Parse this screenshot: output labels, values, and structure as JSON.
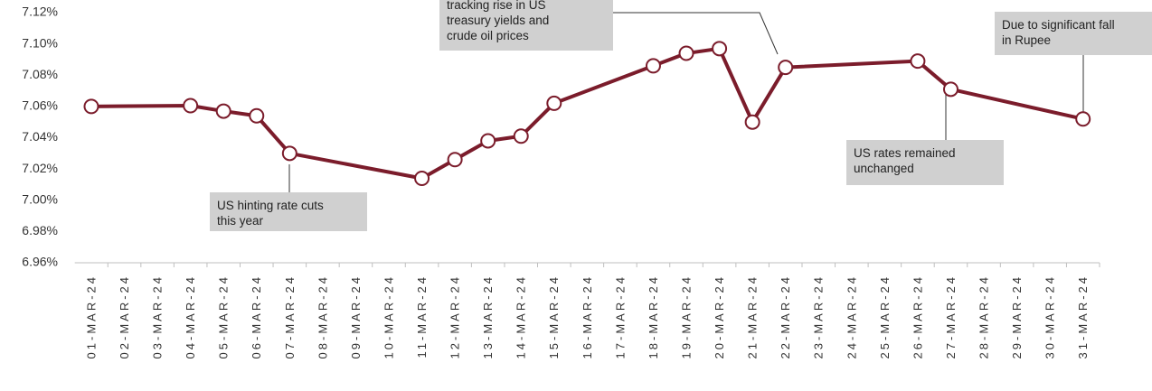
{
  "chart_data": {
    "type": "line",
    "categories": [
      "01-MAR-24",
      "02-MAR-24",
      "03-MAR-24",
      "04-MAR-24",
      "05-MAR-24",
      "06-MAR-24",
      "07-MAR-24",
      "08-MAR-24",
      "09-MAR-24",
      "10-MAR-24",
      "11-MAR-24",
      "12-MAR-24",
      "13-MAR-24",
      "14-MAR-24",
      "15-MAR-24",
      "16-MAR-24",
      "17-MAR-24",
      "18-MAR-24",
      "19-MAR-24",
      "20-MAR-24",
      "21-MAR-24",
      "22-MAR-24",
      "23-MAR-24",
      "24-MAR-24",
      "25-MAR-24",
      "26-MAR-24",
      "27-MAR-24",
      "28-MAR-24",
      "29-MAR-24",
      "30-MAR-24",
      "31-MAR-24"
    ],
    "x": [
      "01-MAR-24",
      "04-MAR-24",
      "05-MAR-24",
      "06-MAR-24",
      "07-MAR-24",
      "11-MAR-24",
      "12-MAR-24",
      "13-MAR-24",
      "14-MAR-24",
      "15-MAR-24",
      "18-MAR-24",
      "19-MAR-24",
      "20-MAR-24",
      "21-MAR-24",
      "22-MAR-24",
      "26-MAR-24",
      "27-MAR-24",
      "31-MAR-24"
    ],
    "values": [
      7.06,
      7.0605,
      7.057,
      7.054,
      7.03,
      7.014,
      7.026,
      7.038,
      7.041,
      7.062,
      7.086,
      7.094,
      7.097,
      7.05,
      7.085,
      7.089,
      7.071,
      7.052
    ],
    "color": "#7b1c2b",
    "ylim": [
      6.96,
      7.12
    ],
    "yticks": [
      {
        "value": 6.96,
        "label": "6.96%"
      },
      {
        "value": 6.98,
        "label": "6.98%"
      },
      {
        "value": 7.0,
        "label": "7.00%"
      },
      {
        "value": 7.02,
        "label": "7.02%"
      },
      {
        "value": 7.04,
        "label": "7.04%"
      },
      {
        "value": 7.06,
        "label": "7.06%"
      },
      {
        "value": 7.08,
        "label": "7.08%"
      },
      {
        "value": 7.1,
        "label": "7.10%"
      },
      {
        "value": 7.12,
        "label": "7.12%"
      }
    ],
    "annotations": [
      {
        "lines": [
          "US hinting rate cuts",
          "this year"
        ]
      },
      {
        "lines": [
          "tracking rise in US",
          "treasury yields and",
          "crude oil prices"
        ]
      },
      {
        "lines": [
          "US rates remained",
          "unchanged"
        ]
      },
      {
        "lines": [
          "Due to significant fall",
          "in Rupee"
        ]
      }
    ]
  }
}
